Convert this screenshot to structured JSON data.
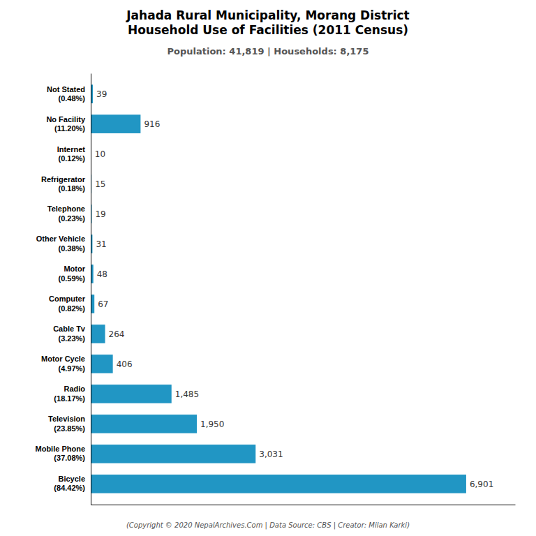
{
  "chart_data": {
    "type": "bar",
    "orientation": "horizontal",
    "title": "Jahada Rural Municipality, Morang District\nHousehold Use of Facilities (2011 Census)",
    "subtitle": "Population: 41,819 | Households: 8,175",
    "annotations": [
      "(Copyright © 2020 NepalArchives.Com | Data Source: CBS | Creator: Milan Karki)"
    ],
    "categories": [
      "Bicycle\n(84.42%)",
      "Mobile Phone\n(37.08%)",
      "Television\n(23.85%)",
      "Radio\n(18.17%)",
      "Motor Cycle\n(4.97%)",
      "Cable Tv\n(3.23%)",
      "Computer\n(0.82%)",
      "Motor\n(0.59%)",
      "Other Vehicle\n(0.38%)",
      "Telephone\n(0.23%)",
      "Refrigerator\n(0.18%)",
      "Internet\n(0.12%)",
      "No Facility\n(11.20%)",
      "Not Stated\n(0.48%)"
    ],
    "values": [
      6901,
      3031,
      1950,
      1485,
      406,
      264,
      67,
      48,
      31,
      19,
      15,
      10,
      916,
      39
    ],
    "value_labels": [
      "6,901",
      "3,031",
      "1,950",
      "1,485",
      "406",
      "264",
      "67",
      "48",
      "31",
      "19",
      "15",
      "10",
      "916",
      "39"
    ],
    "data_labels": true,
    "color": "#2196C4",
    "xlim": [
      0,
      7800
    ],
    "tick_labels": "y",
    "grid": false
  }
}
